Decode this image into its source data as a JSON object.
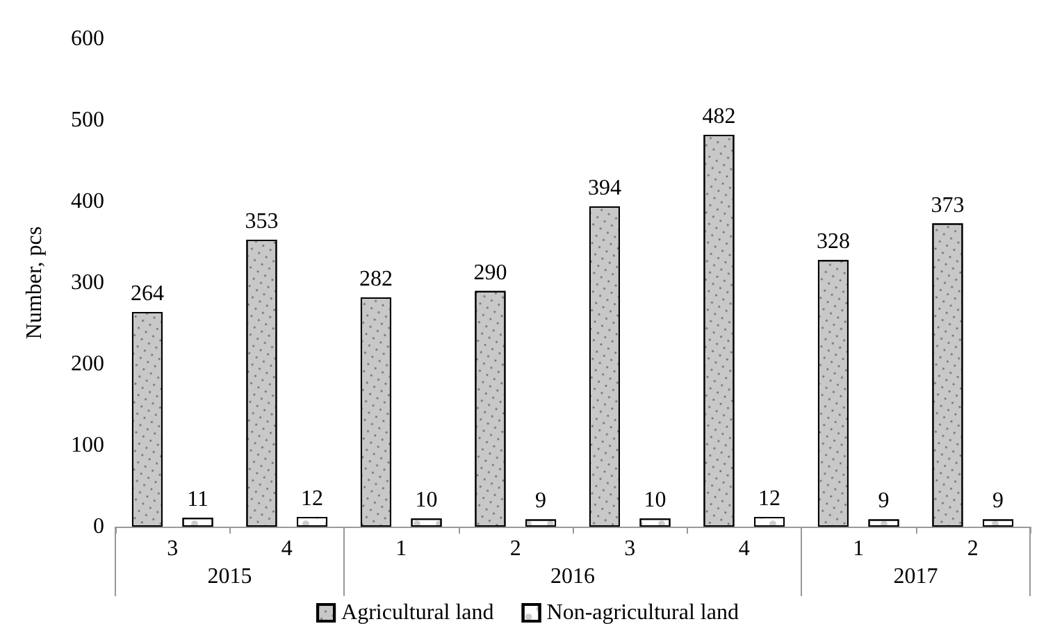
{
  "chart_data": {
    "type": "bar",
    "ylabel": "Number, pcs",
    "categories": [
      "3",
      "4",
      "1",
      "2",
      "3",
      "4",
      "1",
      "2"
    ],
    "series": [
      {
        "name": "Agricultural land",
        "color": "#c8c8c8",
        "values": [
          264,
          353,
          282,
          290,
          394,
          482,
          328,
          373
        ]
      },
      {
        "name": "Non-agricultural land",
        "color": "#ffffff",
        "values": [
          11,
          12,
          10,
          9,
          10,
          12,
          9,
          9
        ]
      }
    ],
    "ylim": [
      0,
      600
    ],
    "yticks": [
      0,
      100,
      200,
      300,
      400,
      500,
      600
    ],
    "grid": false,
    "legend": "bottom",
    "data_labels": true,
    "annotations": [
      "2015",
      "2016",
      "2017"
    ]
  }
}
